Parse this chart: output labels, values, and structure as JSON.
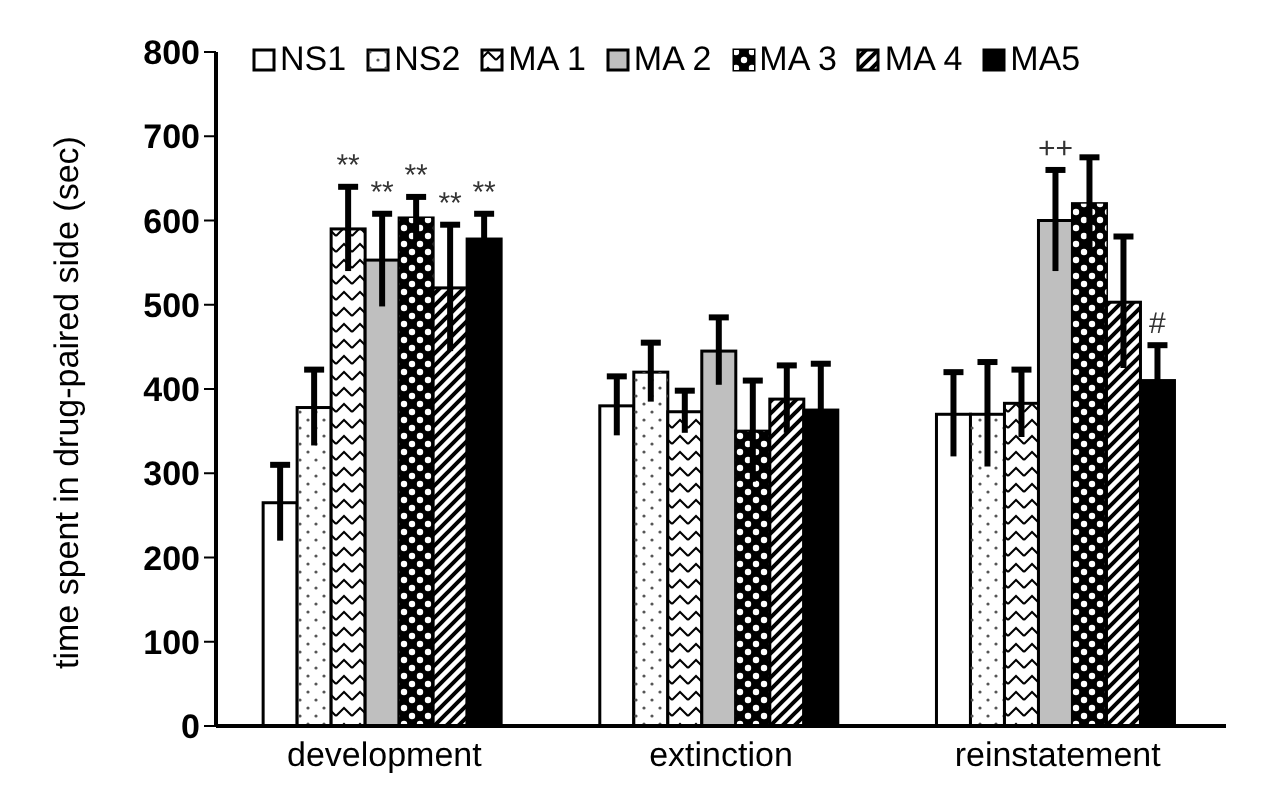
{
  "chart_data": {
    "type": "bar",
    "ylabel": "time spent in drug-paired side (sec)",
    "categories": [
      "development",
      "extinction",
      "reinstatement"
    ],
    "series": [
      {
        "name": "NS1",
        "color": "#ffffff",
        "values": [
          265,
          380,
          370
        ],
        "errors": [
          45,
          35,
          50
        ]
      },
      {
        "name": "NS2",
        "color": "#ffffff",
        "values": [
          378,
          420,
          370
        ],
        "errors": [
          45,
          35,
          62
        ]
      },
      {
        "name": "MA 1",
        "color": "#ffffff",
        "values": [
          590,
          373,
          383
        ],
        "errors": [
          50,
          25,
          40
        ]
      },
      {
        "name": "MA 2",
        "color": "#bfbfbf",
        "values": [
          553,
          445,
          600
        ],
        "errors": [
          55,
          40,
          60
        ]
      },
      {
        "name": "MA 3",
        "color": "#000000",
        "values": [
          603,
          350,
          620
        ],
        "errors": [
          25,
          60,
          55
        ]
      },
      {
        "name": "MA 4",
        "color": "#ffffff",
        "values": [
          520,
          388,
          503
        ],
        "errors": [
          75,
          40,
          78
        ]
      },
      {
        "name": "MA5",
        "color": "#000000",
        "values": [
          578,
          375,
          410
        ],
        "errors": [
          30,
          55,
          42
        ]
      }
    ],
    "annotations": [
      "**",
      "**",
      "**",
      "**",
      "**",
      "++",
      "#"
    ],
    "ylim": [
      0,
      800
    ],
    "yticks": [
      0,
      100,
      200,
      300,
      400,
      500,
      600,
      700,
      800
    ],
    "grid": false,
    "legend": "top"
  }
}
